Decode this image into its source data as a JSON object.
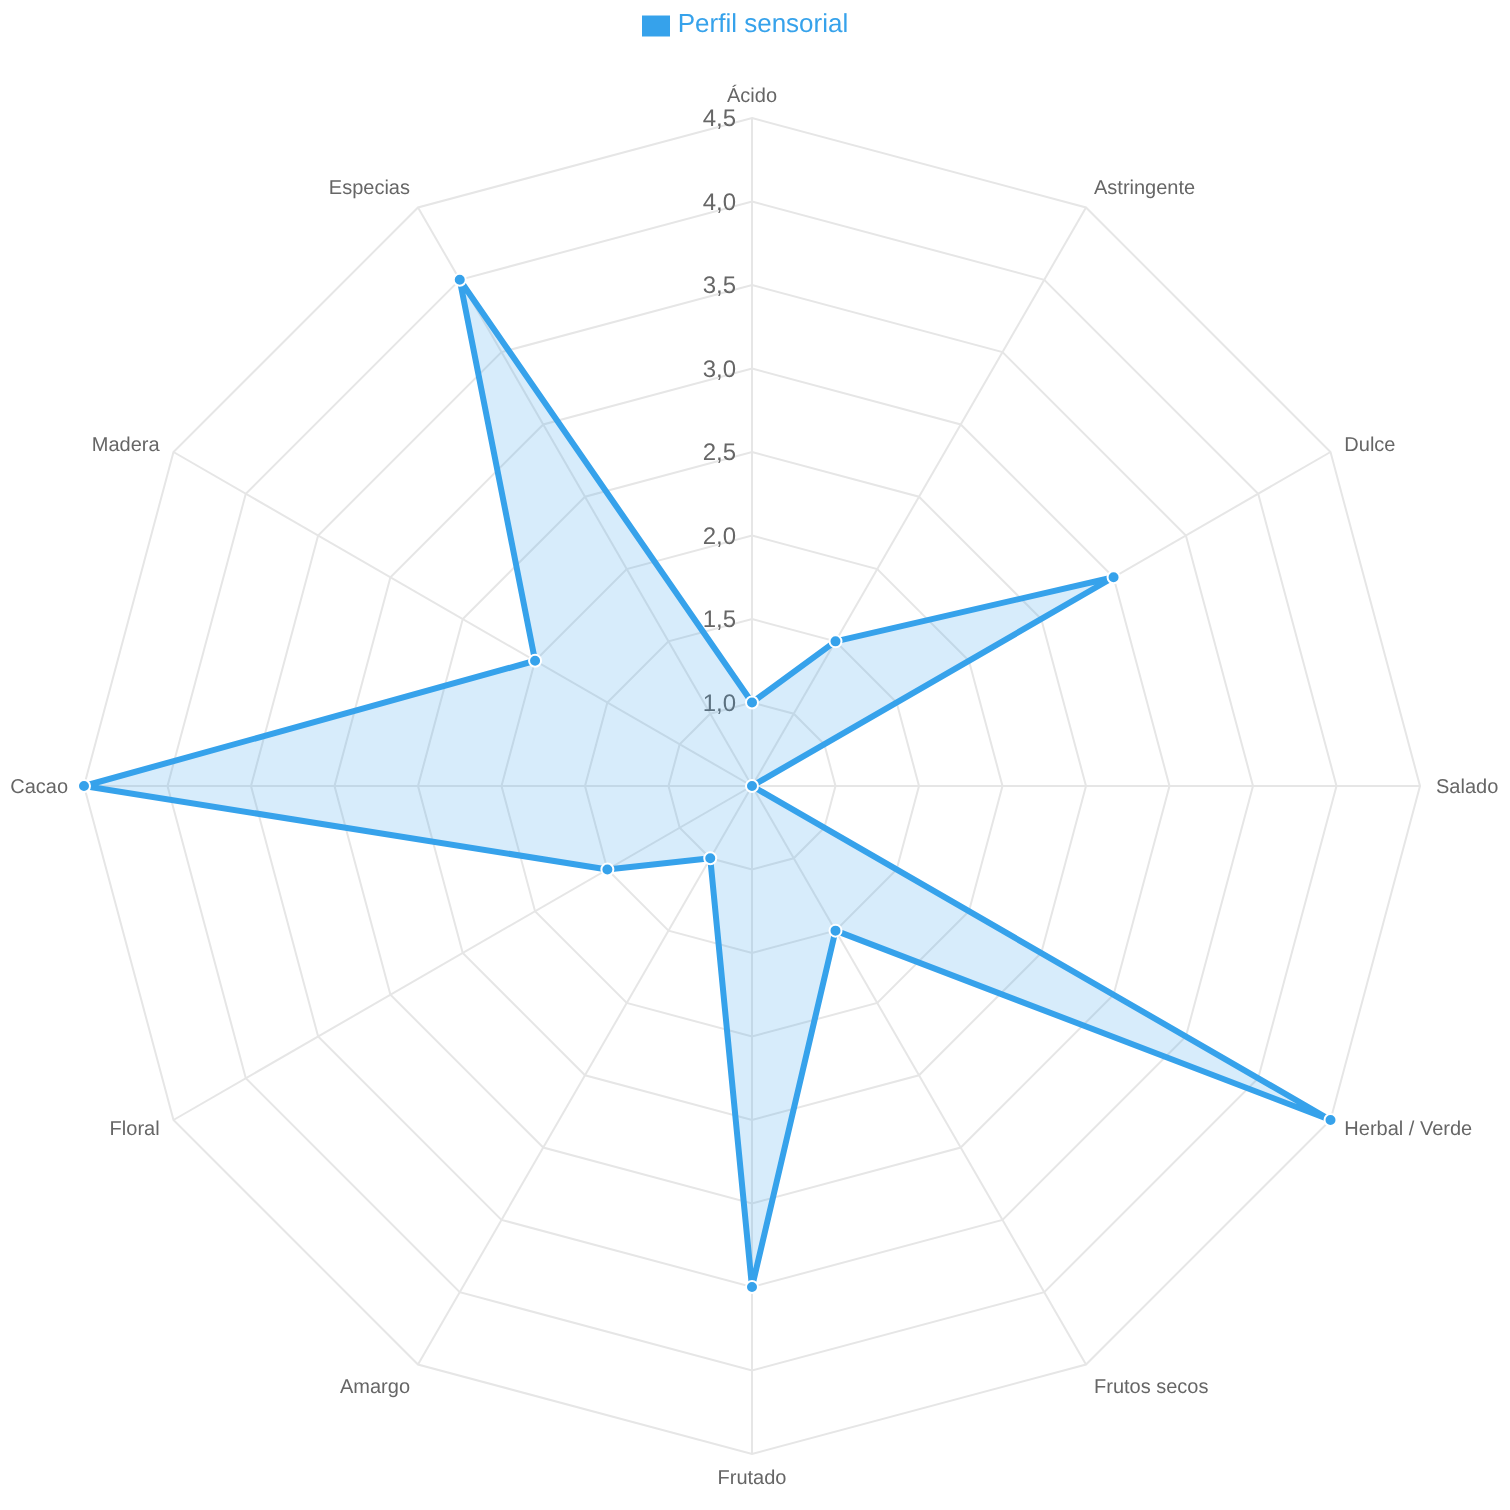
{
  "chart_data": {
    "type": "radar",
    "categories": [
      "Ácido",
      "Astringente",
      "Dulce",
      "Salado",
      "Herbal / Verde",
      "Frutos secos",
      "Frutado",
      "Amargo",
      "Floral",
      "Cacao",
      "Madera",
      "Especias"
    ],
    "series": [
      {
        "name": "Perfil sensorial",
        "color": "#36a2eb",
        "values": [
          1.0,
          1.5,
          3.0,
          0.5,
          4.5,
          1.5,
          3.5,
          1.0,
          1.5,
          4.5,
          2.0,
          4.0
        ]
      }
    ],
    "ylim": [
      0.5,
      4.5
    ],
    "yticks": [
      {
        "value": 1,
        "label": "1,0"
      },
      {
        "value": 1.5,
        "label": "1,5"
      },
      {
        "value": 2,
        "label": "2,0"
      },
      {
        "value": 2.5,
        "label": "2,5"
      },
      {
        "value": 3,
        "label": "3,0"
      },
      {
        "value": 3.5,
        "label": "3,5"
      },
      {
        "value": 4,
        "label": "4,0"
      },
      {
        "value": 4.5,
        "label": "4,5"
      }
    ],
    "legend": "top",
    "marker": "circle",
    "grid": true
  }
}
